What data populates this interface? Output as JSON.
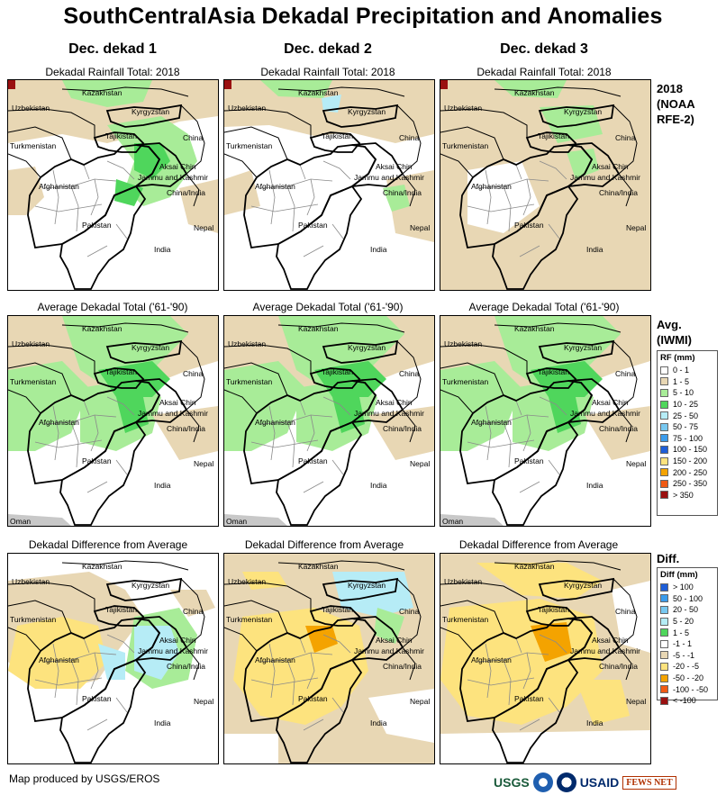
{
  "title": "SouthCentralAsia Dekadal Precipitation and Anomalies",
  "columns": [
    {
      "heading": "Dec. dekad 1"
    },
    {
      "heading": "Dec. dekad 2"
    },
    {
      "heading": "Dec. dekad 3"
    }
  ],
  "rows": [
    {
      "label": "Dekadal Rainfall Total: 2018",
      "type": "total"
    },
    {
      "label": "Average Dekadal Total ('61-'90)",
      "type": "average"
    },
    {
      "label": "Dekadal Difference from Average",
      "type": "diff"
    }
  ],
  "map_labels": {
    "kazakhstan": "Kazakhstan",
    "uzbekistan": "Uzbekistan",
    "kyrgyzstan": "Kyrgyzstan",
    "tajikistan": "Tajikistan",
    "china": "China",
    "turkmenistan": "Turkmenistan",
    "aksai_chin": "Aksai Chin",
    "jammu_kashmir": "Jammu and Kashmir",
    "china_india": "China/India",
    "afghanistan": "Afghanistan",
    "pakistan": "Pakistan",
    "nepal": "Nepal",
    "india": "India",
    "oman": "Oman"
  },
  "side_labels": {
    "top": [
      "2018",
      "(NOAA",
      "RFE-2)"
    ],
    "middle": [
      "Avg.",
      "(IWMI)"
    ],
    "bottom": [
      "Diff."
    ]
  },
  "rf_legend": {
    "title": "RF (mm)",
    "items": [
      {
        "label": "0 - 1",
        "color": "#ffffff"
      },
      {
        "label": "1 - 5",
        "color": "#e8d7b4"
      },
      {
        "label": "5 - 10",
        "color": "#a8ec98"
      },
      {
        "label": "10 - 25",
        "color": "#4fd65c"
      },
      {
        "label": "25 - 50",
        "color": "#b6ecf6"
      },
      {
        "label": "50 - 75",
        "color": "#78c8f0"
      },
      {
        "label": "75 - 100",
        "color": "#3c9cec"
      },
      {
        "label": "100 - 150",
        "color": "#1e5ed8"
      },
      {
        "label": "150 - 200",
        "color": "#fde37e"
      },
      {
        "label": "200 - 250",
        "color": "#f4a300"
      },
      {
        "label": "250 - 350",
        "color": "#f05a14"
      },
      {
        "label": "> 350",
        "color": "#9a1010"
      }
    ]
  },
  "diff_legend": {
    "title": "Diff (mm)",
    "items": [
      {
        "label": "> 100",
        "color": "#1e5ed8"
      },
      {
        "label": "50 - 100",
        "color": "#3c9cec"
      },
      {
        "label": "20 - 50",
        "color": "#78c8f0"
      },
      {
        "label": "5 - 20",
        "color": "#b6ecf6"
      },
      {
        "label": "1 - 5",
        "color": "#4fd65c"
      },
      {
        "label": "-1 - 1",
        "color": "#ffffff"
      },
      {
        "label": "-5 - -1",
        "color": "#e8d7b4"
      },
      {
        "label": "-20 - -5",
        "color": "#fde37e"
      },
      {
        "label": "-50 - -20",
        "color": "#f4a300"
      },
      {
        "label": "-100 - -50",
        "color": "#f05a14"
      },
      {
        "label": "< -100",
        "color": "#9a1010"
      }
    ]
  },
  "footer": "Map produced by USGS/EROS",
  "logos": {
    "usgs": "USGS",
    "usaid": "USAID",
    "fews": "FEWS NET"
  }
}
